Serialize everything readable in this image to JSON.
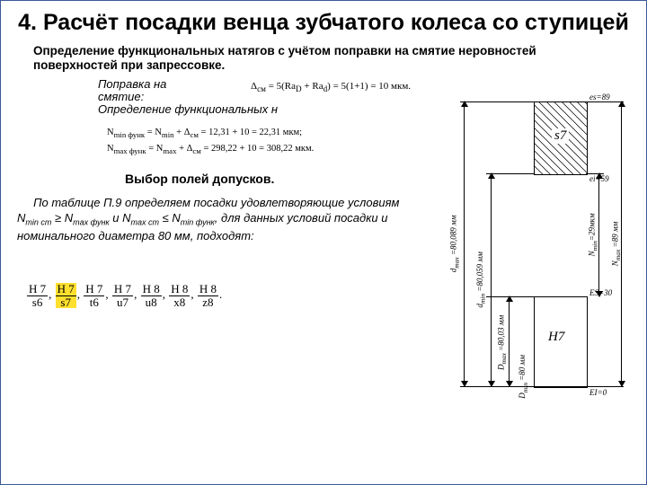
{
  "title": "4. Расчёт посадки венца зубчатого колеса со ступицей",
  "intro": "Определение функциональных натягов с учётом поправки на смятие неровностей поверхностей при запрессовке.",
  "correction_label": "Поправка на смятие:",
  "correction_formula": "Δ<sub>см</sub> = 5(Ra<sub>D</sub> + Ra<sub>d</sub>) = 5(1+1) = 10 мкм.",
  "func_label": "Определение функциональных н",
  "nmin_line": "N<sub>min функ</sub> = N<sub>min</sub> + Δ<sub>см</sub> = 12,31 + 10 = 22,31 мкм;",
  "nmax_line": "N<sub>max функ</sub> = N<sub>max</sub> + Δ<sub>см</sub> = 298,22 + 10 = 308,22 мкм.",
  "choice_heading": "Выбор полей допусков.",
  "choice_para1": "По таблице П.9 определяем посадки удовлетворяющие условиям   N",
  "choice_para2": " ≥ N",
  "choice_para3": " и N",
  "choice_para4": " ≤ N",
  "choice_para5": ", для данных условий посадки и номинального диаметра 80 мм, подходят:",
  "sub_minst": "min ст",
  "sub_maxfunc": "max функ",
  "sub_maxst": "max ст",
  "sub_minfunc": "min функ",
  "fits": [
    {
      "num": "H 7",
      "den": "s6",
      "hl": false
    },
    {
      "num": "H 7",
      "den": "s7",
      "hl": true
    },
    {
      "num": "H 7",
      "den": "t6",
      "hl": false
    },
    {
      "num": "H 7",
      "den": "u7",
      "hl": false
    },
    {
      "num": "H 8",
      "den": "u8",
      "hl": false
    },
    {
      "num": "H 8",
      "den": "x8",
      "hl": false
    },
    {
      "num": "H 8",
      "den": "z8",
      "hl": false
    }
  ],
  "diagram": {
    "s7_label": "s7",
    "h7_label": "H7",
    "es89": "es=89",
    "ei59": "ei=59",
    "ES30": "ES=30",
    "EI0": "EI=0",
    "dmax": "d<sub>max</sub> =80,089 мм",
    "dmin": "d<sub>min</sub> =80,059 мм",
    "Dmax": "D<sub>max</sub> =80,03 мм",
    "Dmin": "D<sub>min</sub> =80 мм",
    "Nmin": "N<sub>min</sub>=29мкм",
    "Nmax": "N<sub>max</sub> =89 мм"
  }
}
